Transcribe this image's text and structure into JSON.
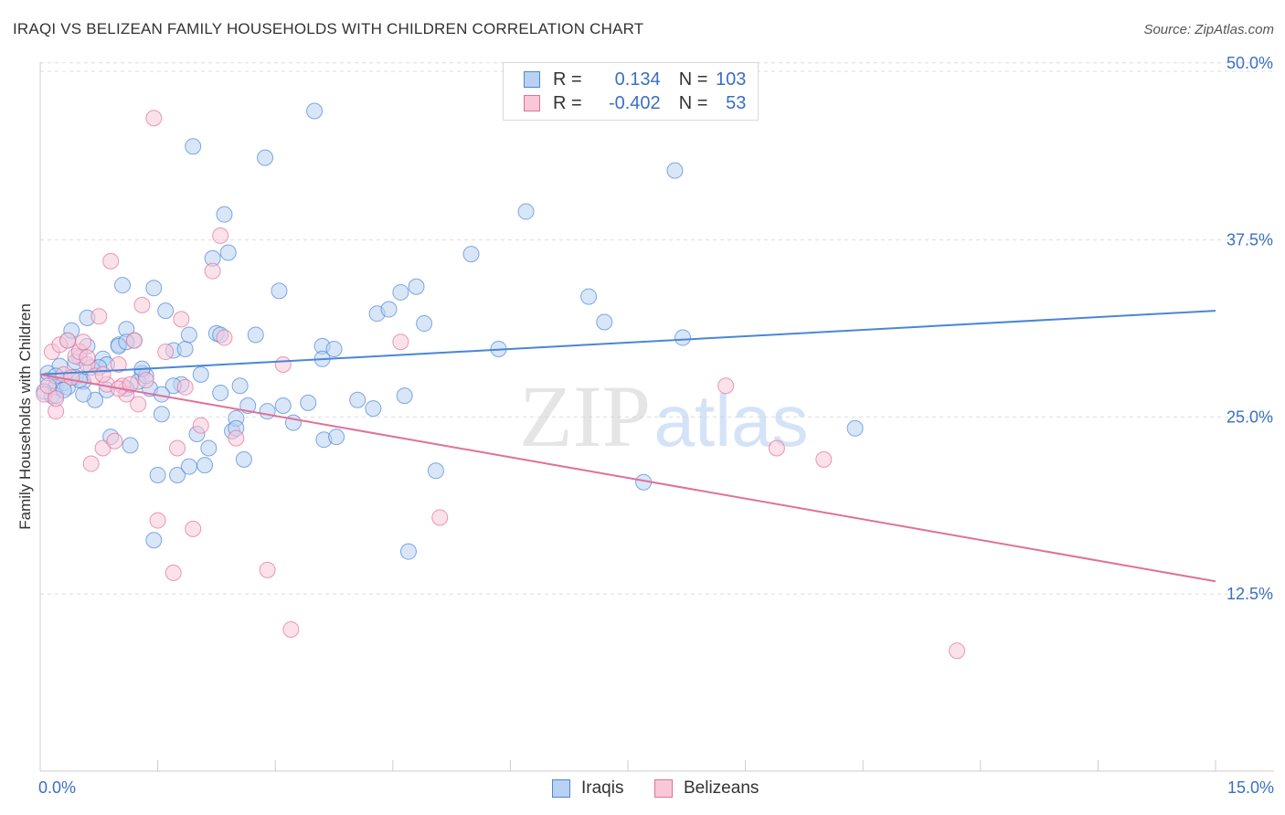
{
  "title": "IRAQI VS BELIZEAN FAMILY HOUSEHOLDS WITH CHILDREN CORRELATION CHART",
  "source": "Source: ZipAtlas.com",
  "watermark": {
    "zip": "ZIP",
    "atlas": "atlas"
  },
  "legend": {
    "r_label": "R =",
    "n_label": "N =",
    "rows": [
      {
        "r": "0.134",
        "n": "103",
        "color": "#4a86d8",
        "fill": "#b9d1f3"
      },
      {
        "r": "-0.402",
        "n": "53",
        "color": "#e0709a",
        "fill": "#f8c8d8"
      }
    ]
  },
  "x_axis_labels": {
    "min": "0.0%",
    "max": "15.0%"
  },
  "chart_data": {
    "type": "scatter",
    "ylabel": "Family Households with Children",
    "xlabel": "",
    "xlim": [
      0,
      15
    ],
    "ylim": [
      0,
      52.5
    ],
    "ytick_values": [
      12.5,
      25.0,
      37.5,
      50.0
    ],
    "ytick_labels": [
      "12.5%",
      "25.0%",
      "37.5%",
      "50.0%"
    ],
    "grid": "horizontal dashed",
    "legend_position": "top-center",
    "series": [
      {
        "name": "Iraqis",
        "color": "#4a86d8",
        "fill": "#b9d1f3",
        "trend": {
          "x": [
            0,
            15
          ],
          "y": [
            28.0,
            32.5
          ]
        },
        "points": [
          [
            0.1,
            27.6
          ],
          [
            0.15,
            26.5
          ],
          [
            0.2,
            27.1
          ],
          [
            0.25,
            28.6
          ],
          [
            0.3,
            27.4
          ],
          [
            0.05,
            26.8
          ],
          [
            0.1,
            28.1
          ],
          [
            0.2,
            26.5
          ],
          [
            0.35,
            30.4
          ],
          [
            0.4,
            31.1
          ],
          [
            0.45,
            27.8
          ],
          [
            0.5,
            29.2
          ],
          [
            0.55,
            27.5
          ],
          [
            0.6,
            32.0
          ],
          [
            0.65,
            28.5
          ],
          [
            0.7,
            26.2
          ],
          [
            0.8,
            29.1
          ],
          [
            0.85,
            28.7
          ],
          [
            0.9,
            23.6
          ],
          [
            1.0,
            30.1
          ],
          [
            1.05,
            34.3
          ],
          [
            1.1,
            31.2
          ],
          [
            1.2,
            30.4
          ],
          [
            1.3,
            28.1
          ],
          [
            1.4,
            27.0
          ],
          [
            1.45,
            34.1
          ],
          [
            1.55,
            25.2
          ],
          [
            1.6,
            32.5
          ],
          [
            1.7,
            29.7
          ],
          [
            1.8,
            27.3
          ],
          [
            1.85,
            29.8
          ],
          [
            1.9,
            30.8
          ],
          [
            1.95,
            44.1
          ],
          [
            2.0,
            23.8
          ],
          [
            2.05,
            28.0
          ],
          [
            2.1,
            21.6
          ],
          [
            2.15,
            22.8
          ],
          [
            2.2,
            36.2
          ],
          [
            2.25,
            30.9
          ],
          [
            2.3,
            26.7
          ],
          [
            2.35,
            39.3
          ],
          [
            2.4,
            36.6
          ],
          [
            2.45,
            24.0
          ],
          [
            2.5,
            24.9
          ],
          [
            2.55,
            27.2
          ],
          [
            2.6,
            22.0
          ],
          [
            2.65,
            25.8
          ],
          [
            2.75,
            30.8
          ],
          [
            2.87,
            43.3
          ],
          [
            3.05,
            33.9
          ],
          [
            3.1,
            25.8
          ],
          [
            3.23,
            24.6
          ],
          [
            3.42,
            26.0
          ],
          [
            3.5,
            46.6
          ],
          [
            3.6,
            30.0
          ],
          [
            3.62,
            23.4
          ],
          [
            3.78,
            23.6
          ],
          [
            4.05,
            26.2
          ],
          [
            4.25,
            25.6
          ],
          [
            4.3,
            32.3
          ],
          [
            4.45,
            32.6
          ],
          [
            4.6,
            33.8
          ],
          [
            4.65,
            26.5
          ],
          [
            4.8,
            34.2
          ],
          [
            4.9,
            31.6
          ],
          [
            5.05,
            21.2
          ],
          [
            5.5,
            36.5
          ],
          [
            5.85,
            29.8
          ],
          [
            6.2,
            39.5
          ],
          [
            7.0,
            33.5
          ],
          [
            7.7,
            20.4
          ],
          [
            7.2,
            31.7
          ],
          [
            8.1,
            42.4
          ],
          [
            8.2,
            30.6
          ],
          [
            10.4,
            24.2
          ],
          [
            4.7,
            15.5
          ],
          [
            1.45,
            16.3
          ],
          [
            1.5,
            20.9
          ],
          [
            1.75,
            20.9
          ],
          [
            1.9,
            21.5
          ],
          [
            1.15,
            23.0
          ],
          [
            0.55,
            26.6
          ],
          [
            0.35,
            27.1
          ],
          [
            1.0,
            30.0
          ],
          [
            0.75,
            28.5
          ],
          [
            1.25,
            27.5
          ],
          [
            1.1,
            27.0
          ],
          [
            0.45,
            28.9
          ],
          [
            1.7,
            27.2
          ],
          [
            2.3,
            30.8
          ],
          [
            2.5,
            24.2
          ],
          [
            3.6,
            29.1
          ],
          [
            3.75,
            29.8
          ],
          [
            2.9,
            25.4
          ],
          [
            1.35,
            27.9
          ],
          [
            1.55,
            26.6
          ],
          [
            0.2,
            27.9
          ],
          [
            0.6,
            30.0
          ],
          [
            0.85,
            26.9
          ],
          [
            1.1,
            30.3
          ],
          [
            1.3,
            28.4
          ],
          [
            0.5,
            27.6
          ],
          [
            0.3,
            26.9
          ]
        ]
      },
      {
        "name": "Belizeans",
        "color": "#e0709a",
        "fill": "#f8c8d8",
        "trend": {
          "x": [
            0,
            15
          ],
          "y": [
            28.0,
            13.4
          ]
        },
        "points": [
          [
            0.05,
            26.6
          ],
          [
            0.1,
            27.2
          ],
          [
            0.15,
            29.6
          ],
          [
            0.2,
            25.4
          ],
          [
            0.25,
            30.1
          ],
          [
            0.3,
            28.0
          ],
          [
            0.35,
            30.4
          ],
          [
            0.45,
            29.3
          ],
          [
            0.5,
            29.6
          ],
          [
            0.55,
            30.3
          ],
          [
            0.6,
            28.7
          ],
          [
            0.65,
            21.7
          ],
          [
            0.7,
            27.9
          ],
          [
            0.75,
            32.1
          ],
          [
            0.8,
            22.8
          ],
          [
            0.85,
            27.3
          ],
          [
            0.9,
            36.0
          ],
          [
            0.95,
            23.3
          ],
          [
            1.0,
            28.7
          ],
          [
            1.05,
            27.2
          ],
          [
            1.1,
            26.6
          ],
          [
            1.2,
            30.4
          ],
          [
            1.25,
            25.9
          ],
          [
            1.3,
            32.9
          ],
          [
            1.35,
            27.6
          ],
          [
            1.45,
            46.1
          ],
          [
            1.5,
            17.7
          ],
          [
            1.6,
            29.6
          ],
          [
            1.7,
            14.0
          ],
          [
            1.75,
            22.8
          ],
          [
            1.8,
            31.9
          ],
          [
            1.85,
            27.1
          ],
          [
            1.95,
            17.1
          ],
          [
            2.05,
            24.4
          ],
          [
            2.2,
            35.3
          ],
          [
            2.3,
            37.8
          ],
          [
            2.35,
            30.6
          ],
          [
            2.5,
            23.5
          ],
          [
            2.9,
            14.2
          ],
          [
            3.1,
            28.7
          ],
          [
            3.2,
            10.0
          ],
          [
            4.6,
            30.3
          ],
          [
            5.1,
            17.9
          ],
          [
            8.75,
            27.2
          ],
          [
            9.4,
            22.8
          ],
          [
            10.0,
            22.0
          ],
          [
            11.7,
            8.5
          ],
          [
            0.4,
            27.8
          ],
          [
            0.6,
            29.2
          ],
          [
            1.0,
            27.0
          ],
          [
            0.2,
            26.3
          ],
          [
            0.8,
            28.0
          ],
          [
            1.15,
            27.3
          ]
        ]
      }
    ]
  }
}
